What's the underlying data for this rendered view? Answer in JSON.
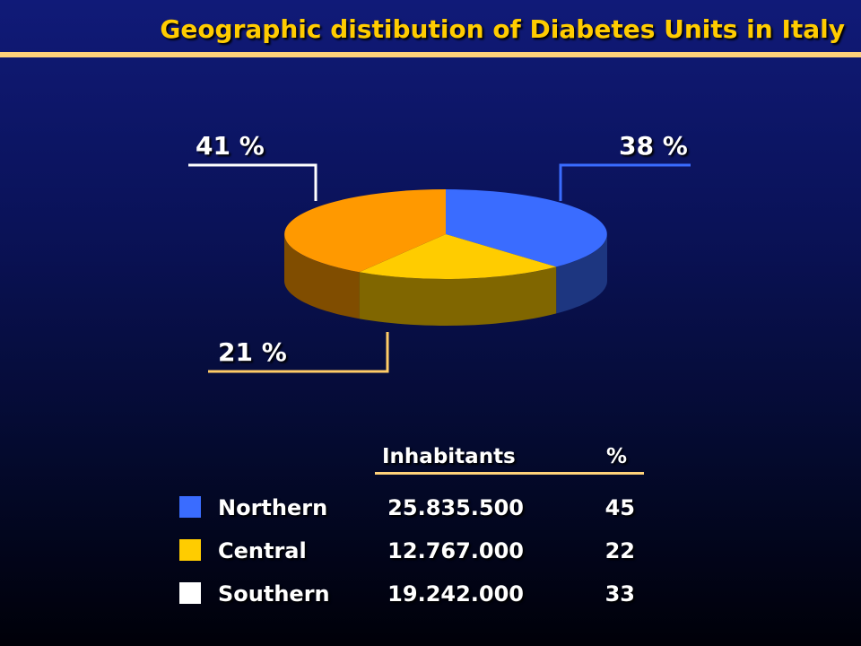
{
  "title": "Geographic distibution of Diabetes Units in Italy",
  "colors": {
    "northern": "#3a6cff",
    "central": "#ffcc00",
    "southern_slice": "#ff9900",
    "southern_legend": "#ffffff",
    "title": "#ffcc00",
    "rule": "#ffd27a"
  },
  "chart_data": {
    "type": "pie",
    "style": "3d",
    "slices": [
      {
        "label": "38 %",
        "value": 38
      },
      {
        "label": "21 %",
        "value": 21
      },
      {
        "label": "41 %",
        "value": 41
      }
    ]
  },
  "table": {
    "headers": {
      "inhabitants": "Inhabitants",
      "percent": "%"
    },
    "rows": [
      {
        "region": "Northern",
        "inhabitants": "25.835.500",
        "percent": "45"
      },
      {
        "region": "Central",
        "inhabitants": "12.767.000",
        "percent": "22"
      },
      {
        "region": "Southern",
        "inhabitants": "19.242.000",
        "percent": "33"
      }
    ]
  }
}
